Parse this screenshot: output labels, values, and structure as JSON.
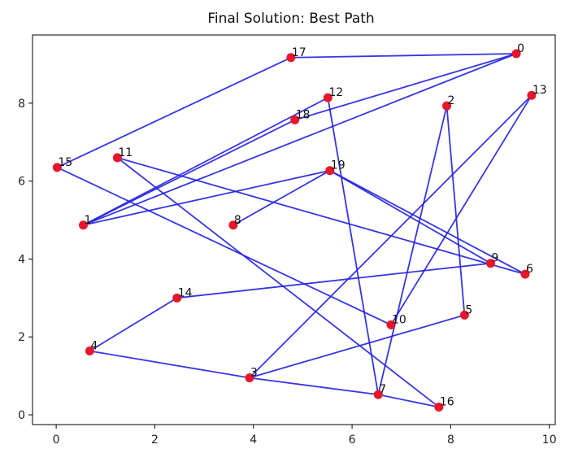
{
  "chart_data": {
    "type": "scatter",
    "title": "Final Solution: Best Path",
    "xlabel": "",
    "ylabel": "",
    "xlim": [
      -0.48,
      10.12
    ],
    "ylim": [
      -0.25,
      9.75
    ],
    "xticks": [
      0,
      2,
      4,
      6,
      8,
      10
    ],
    "yticks": [
      0,
      2,
      4,
      6,
      8
    ],
    "grid": false,
    "point_color": "#e8162a",
    "path_color": "#2020e0",
    "points": [
      {
        "label": "0",
        "x": 9.33,
        "y": 9.27
      },
      {
        "label": "1",
        "x": 0.55,
        "y": 4.87
      },
      {
        "label": "2",
        "x": 7.92,
        "y": 7.93
      },
      {
        "label": "3",
        "x": 3.92,
        "y": 0.95
      },
      {
        "label": "4",
        "x": 0.68,
        "y": 1.64
      },
      {
        "label": "5",
        "x": 8.28,
        "y": 2.56
      },
      {
        "label": "6",
        "x": 9.51,
        "y": 3.61
      },
      {
        "label": "7",
        "x": 6.53,
        "y": 0.52
      },
      {
        "label": "8",
        "x": 3.59,
        "y": 4.87
      },
      {
        "label": "9",
        "x": 8.81,
        "y": 3.89
      },
      {
        "label": "10",
        "x": 6.79,
        "y": 2.31
      },
      {
        "label": "11",
        "x": 1.24,
        "y": 6.6
      },
      {
        "label": "12",
        "x": 5.51,
        "y": 8.14
      },
      {
        "label": "13",
        "x": 9.64,
        "y": 8.2
      },
      {
        "label": "14",
        "x": 2.45,
        "y": 3.0
      },
      {
        "label": "15",
        "x": 0.02,
        "y": 6.35
      },
      {
        "label": "16",
        "x": 7.76,
        "y": 0.2
      },
      {
        "label": "17",
        "x": 4.76,
        "y": 9.17
      },
      {
        "label": "18",
        "x": 4.84,
        "y": 7.57
      },
      {
        "label": "19",
        "x": 5.55,
        "y": 6.27
      }
    ],
    "path": [
      "0",
      "1",
      "12",
      "7",
      "2",
      "5",
      "3",
      "13",
      "10",
      "15",
      "17",
      "0",
      "18",
      "1",
      "19",
      "6",
      "11",
      "16",
      "7",
      "3",
      "4",
      "14",
      "9",
      "19",
      "8"
    ]
  }
}
